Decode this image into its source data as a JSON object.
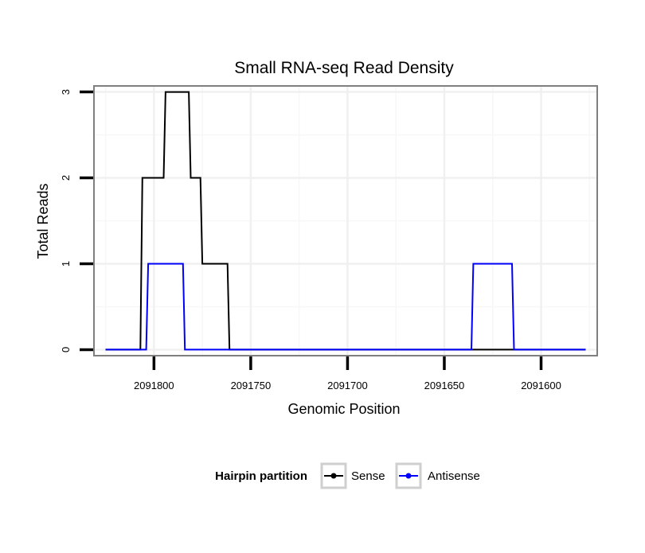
{
  "chart_data": {
    "type": "line",
    "title": "Small RNA-seq Read Density",
    "xlabel": "Genomic Position",
    "ylabel": "Total Reads",
    "x_reversed": true,
    "xlim": [
      2091831,
      2091571
    ],
    "ylim": [
      -0.07,
      3.07
    ],
    "x_ticks": [
      2091800,
      2091750,
      2091700,
      2091650,
      2091600
    ],
    "x_tick_labels": [
      "2091800",
      "2091750",
      "2091700",
      "2091650",
      "2091600"
    ],
    "y_ticks": [
      0,
      1,
      2,
      3
    ],
    "y_tick_labels": [
      "0",
      "1",
      "2",
      "3"
    ],
    "grid": true,
    "legend": {
      "title": "Hairpin partition",
      "position": "bottom",
      "entries": [
        "Sense",
        "Antisense"
      ]
    },
    "series": [
      {
        "name": "Sense",
        "color": "#000000",
        "x": [
          2091825,
          2091807,
          2091806,
          2091795,
          2091794,
          2091782,
          2091781,
          2091776,
          2091775,
          2091762,
          2091761,
          2091577
        ],
        "y": [
          0,
          0,
          2,
          2,
          3,
          3,
          2,
          2,
          1,
          1,
          0,
          0
        ]
      },
      {
        "name": "Antisense",
        "color": "#0000ff",
        "x": [
          2091825,
          2091804,
          2091803,
          2091785,
          2091784,
          2091760,
          2091759,
          2091636,
          2091635,
          2091615,
          2091614,
          2091577
        ],
        "y": [
          0,
          0,
          1,
          1,
          0,
          0,
          0,
          0,
          1,
          1,
          0,
          0
        ]
      }
    ]
  }
}
